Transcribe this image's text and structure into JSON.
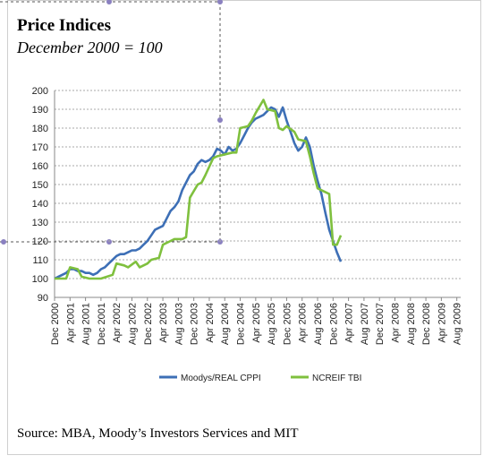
{
  "header": {
    "title": "Price Indices",
    "subtitle": "December 2000 = 100"
  },
  "footer": {
    "source": "Source: MBA, Moody’s Investors Services and MIT"
  },
  "chart_data": {
    "type": "line",
    "title": "Price Indices",
    "subtitle": "December 2000 = 100",
    "ylim": [
      90,
      200
    ],
    "yticks": [
      90,
      100,
      110,
      120,
      130,
      140,
      150,
      160,
      170,
      180,
      190,
      200
    ],
    "grid": "horizontal dotted",
    "legend_position": "bottom",
    "categories": [
      "Dec 2000",
      "Apr 2001",
      "Aug 2001",
      "Dec 2001",
      "Apr 2002",
      "Aug 2002",
      "Dec 2002",
      "Apr 2003",
      "Aug 2003",
      "Dec 2003",
      "Apr 2004",
      "Aug 2004",
      "Dec 2004",
      "Apr 2005",
      "Aug 2005",
      "Dec 2005",
      "Apr 2006",
      "Aug 2006",
      "Dec 2006",
      "Apr 2007",
      "Aug 2007",
      "Dec 2007",
      "Apr 2008",
      "Aug 2008",
      "Dec 2008",
      "Apr 2009",
      "Aug 2009"
    ],
    "series": [
      {
        "name": "Moodys/REAL CPPI",
        "color": "#3d6fb6",
        "values": [
          [
            0,
            100
          ],
          [
            1,
            101
          ],
          [
            2,
            102
          ],
          [
            3,
            103
          ],
          [
            4,
            105
          ],
          [
            5,
            105
          ],
          [
            6,
            104
          ],
          [
            7,
            104
          ],
          [
            8,
            103
          ],
          [
            9,
            103
          ],
          [
            10,
            102
          ],
          [
            11,
            103
          ],
          [
            12,
            105
          ],
          [
            13,
            106
          ],
          [
            14,
            108
          ],
          [
            15,
            110
          ],
          [
            16,
            112
          ],
          [
            17,
            113
          ],
          [
            18,
            113
          ],
          [
            19,
            114
          ],
          [
            20,
            115
          ],
          [
            21,
            115
          ],
          [
            22,
            116
          ],
          [
            23,
            118
          ],
          [
            24,
            120
          ],
          [
            25,
            123
          ],
          [
            26,
            126
          ],
          [
            27,
            127
          ],
          [
            28,
            128
          ],
          [
            29,
            132
          ],
          [
            30,
            136
          ],
          [
            31,
            138
          ],
          [
            32,
            141
          ],
          [
            33,
            147
          ],
          [
            34,
            151
          ],
          [
            35,
            155
          ],
          [
            36,
            157
          ],
          [
            37,
            161
          ],
          [
            38,
            163
          ],
          [
            39,
            162
          ],
          [
            40,
            163
          ],
          [
            41,
            165
          ],
          [
            42,
            169
          ],
          [
            43,
            168
          ],
          [
            44,
            166
          ],
          [
            45,
            170
          ],
          [
            46,
            168
          ],
          [
            47,
            169
          ],
          [
            48,
            172
          ],
          [
            49,
            176
          ],
          [
            50,
            180
          ],
          [
            51,
            183
          ],
          [
            52,
            185
          ],
          [
            53,
            186
          ],
          [
            54,
            187
          ],
          [
            55,
            189
          ],
          [
            56,
            191
          ],
          [
            57,
            190
          ],
          [
            58,
            186
          ],
          [
            59,
            191
          ],
          [
            60,
            184
          ],
          [
            61,
            178
          ],
          [
            62,
            172
          ],
          [
            63,
            168
          ],
          [
            64,
            170
          ],
          [
            65,
            175
          ],
          [
            66,
            170
          ],
          [
            67,
            160
          ],
          [
            68,
            152
          ],
          [
            69,
            145
          ],
          [
            70,
            135
          ],
          [
            71,
            126
          ],
          [
            72,
            120
          ],
          [
            73,
            114
          ],
          [
            74,
            109
          ]
        ]
      },
      {
        "name": "NCREIF TBI",
        "color": "#7fc03e",
        "values": [
          [
            0,
            100
          ],
          [
            3,
            100
          ],
          [
            4,
            106
          ],
          [
            6,
            105
          ],
          [
            7,
            101
          ],
          [
            9,
            100
          ],
          [
            12,
            100
          ],
          [
            15,
            102
          ],
          [
            16,
            108
          ],
          [
            18,
            107
          ],
          [
            19,
            106
          ],
          [
            21,
            109
          ],
          [
            22,
            106
          ],
          [
            24,
            108
          ],
          [
            25,
            110
          ],
          [
            27,
            111
          ],
          [
            28,
            118
          ],
          [
            30,
            120
          ],
          [
            31,
            121
          ],
          [
            33,
            121
          ],
          [
            34,
            122
          ],
          [
            35,
            143
          ],
          [
            37,
            150
          ],
          [
            38,
            151
          ],
          [
            39,
            155
          ],
          [
            41,
            164
          ],
          [
            42,
            165
          ],
          [
            46,
            167
          ],
          [
            47,
            167
          ],
          [
            48,
            180
          ],
          [
            50,
            181
          ],
          [
            51,
            184
          ],
          [
            52,
            188
          ],
          [
            54,
            195
          ],
          [
            55,
            190
          ],
          [
            57,
            189
          ],
          [
            58,
            180
          ],
          [
            59,
            179
          ],
          [
            60,
            181
          ],
          [
            62,
            178
          ],
          [
            63,
            174
          ],
          [
            65,
            173
          ],
          [
            66,
            165
          ],
          [
            67,
            156
          ],
          [
            68,
            148
          ],
          [
            69,
            147
          ],
          [
            70,
            146
          ],
          [
            71,
            145
          ],
          [
            72,
            118
          ],
          [
            73,
            118
          ],
          [
            74,
            123
          ]
        ]
      }
    ]
  }
}
